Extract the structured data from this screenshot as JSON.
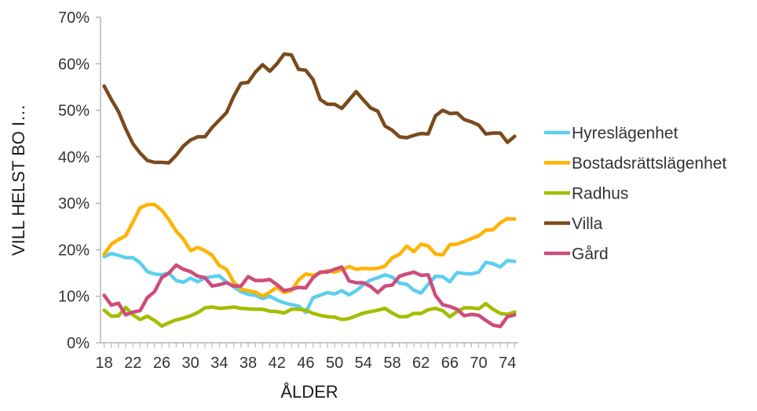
{
  "chart_data": {
    "type": "line",
    "title": "",
    "xlabel": "ÅLDER",
    "ylabel": "VILL HELST BO I…",
    "x": [
      18,
      19,
      20,
      21,
      22,
      23,
      24,
      25,
      26,
      27,
      28,
      29,
      30,
      31,
      32,
      33,
      34,
      35,
      36,
      37,
      38,
      39,
      40,
      41,
      42,
      43,
      44,
      45,
      46,
      47,
      48,
      49,
      50,
      51,
      52,
      53,
      54,
      55,
      56,
      57,
      58,
      59,
      60,
      61,
      62,
      63,
      64,
      65,
      66,
      67,
      68,
      69,
      70,
      71,
      72,
      73,
      74,
      75
    ],
    "xticks": [
      18,
      22,
      26,
      30,
      34,
      38,
      42,
      46,
      50,
      54,
      58,
      62,
      66,
      70,
      74
    ],
    "xlim": [
      17.5,
      75.5
    ],
    "ylim": [
      0,
      70
    ],
    "yticks": [
      0,
      10,
      20,
      30,
      40,
      50,
      60,
      70
    ],
    "ytick_labels": [
      "0%",
      "10%",
      "20%",
      "30%",
      "40%",
      "50%",
      "60%",
      "70%"
    ],
    "grid": false,
    "legend_position": "right",
    "series": [
      {
        "name": "Hyreslägenhet",
        "color": "#5dcfee",
        "values": [
          18.5,
          19.2,
          18.8,
          18.3,
          18.3,
          17.2,
          15.3,
          14.8,
          14.6,
          15.0,
          13.4,
          13.0,
          13.9,
          13.1,
          14.0,
          14.2,
          14.4,
          13.0,
          12.0,
          11.0,
          10.4,
          10.2,
          9.5,
          10.0,
          9.2,
          8.6,
          8.2,
          7.9,
          6.5,
          9.7,
          10.2,
          10.8,
          10.5,
          11.2,
          10.3,
          11.2,
          12.5,
          13.5,
          14.0,
          14.6,
          14.1,
          12.8,
          12.6,
          11.3,
          10.7,
          12.6,
          14.3,
          14.2,
          13.1,
          15.1,
          14.9,
          14.8,
          15.2,
          17.3,
          17.0,
          16.3,
          17.7,
          17.5
        ]
      },
      {
        "name": "Bostadsrättslägenhet",
        "color": "#ffb200",
        "values": [
          19.0,
          21.2,
          22.2,
          23.0,
          26.0,
          29.0,
          29.7,
          29.7,
          28.5,
          26.5,
          24.0,
          22.3,
          19.8,
          20.5,
          19.8,
          18.8,
          16.6,
          15.8,
          13.0,
          11.5,
          11.2,
          10.9,
          10.0,
          10.9,
          11.9,
          10.8,
          11.2,
          13.5,
          14.8,
          14.5,
          15.0,
          15.5,
          15.2,
          15.7,
          16.4,
          15.8,
          16.0,
          15.9,
          16.0,
          16.5,
          18.3,
          19.0,
          20.8,
          19.6,
          21.2,
          20.8,
          19.1,
          18.9,
          21.1,
          21.2,
          21.8,
          22.4,
          23.0,
          24.2,
          24.3,
          25.8,
          26.7,
          26.6
        ]
      },
      {
        "name": "Radhus",
        "color": "#a4bd00",
        "values": [
          7.0,
          5.7,
          5.8,
          7.6,
          6.0,
          5.0,
          5.7,
          4.8,
          3.6,
          4.3,
          4.9,
          5.3,
          5.8,
          6.5,
          7.5,
          7.7,
          7.4,
          7.5,
          7.7,
          7.4,
          7.3,
          7.2,
          7.2,
          6.8,
          6.7,
          6.4,
          7.2,
          7.2,
          7.0,
          6.3,
          5.9,
          5.6,
          5.5,
          5.0,
          5.2,
          5.8,
          6.4,
          6.7,
          7.0,
          7.4,
          6.4,
          5.6,
          5.6,
          6.3,
          6.3,
          7.1,
          7.4,
          6.9,
          5.6,
          6.7,
          7.5,
          7.5,
          7.3,
          8.4,
          7.2,
          6.3,
          6.1,
          6.6
        ]
      },
      {
        "name": "Villa",
        "color": "#7a4a1c",
        "values": [
          55.2,
          52.3,
          49.7,
          46.0,
          42.8,
          40.8,
          39.2,
          38.8,
          38.8,
          38.7,
          40.3,
          42.3,
          43.6,
          44.3,
          44.3,
          46.3,
          47.9,
          49.5,
          53.0,
          55.8,
          56.0,
          58.2,
          59.8,
          58.4,
          60.0,
          62.1,
          61.9,
          58.8,
          58.6,
          56.6,
          52.3,
          51.3,
          51.3,
          50.4,
          52.2,
          54.0,
          52.2,
          50.5,
          49.8,
          46.6,
          45.7,
          44.3,
          44.1,
          44.6,
          45.0,
          44.9,
          48.8,
          50.0,
          49.3,
          49.4,
          48.0,
          47.5,
          46.8,
          44.9,
          45.1,
          45.1,
          43.1,
          44.4
        ]
      },
      {
        "name": "Gård",
        "color": "#cc4d7c",
        "values": [
          10.2,
          8.1,
          8.5,
          6.0,
          6.6,
          6.9,
          9.7,
          11.0,
          14.0,
          15.0,
          16.7,
          15.8,
          15.3,
          14.3,
          14.0,
          12.2,
          12.5,
          12.9,
          12.2,
          12.2,
          14.2,
          13.4,
          13.4,
          13.6,
          12.5,
          11.2,
          11.5,
          11.9,
          11.8,
          14.0,
          15.2,
          15.2,
          15.8,
          16.3,
          13.3,
          12.9,
          12.9,
          12.1,
          10.8,
          12.2,
          12.4,
          14.3,
          14.8,
          15.2,
          14.5,
          14.6,
          10.2,
          8.2,
          7.8,
          7.2,
          5.8,
          6.1,
          5.9,
          4.8,
          3.8,
          3.5,
          5.6,
          6.0
        ]
      }
    ]
  }
}
